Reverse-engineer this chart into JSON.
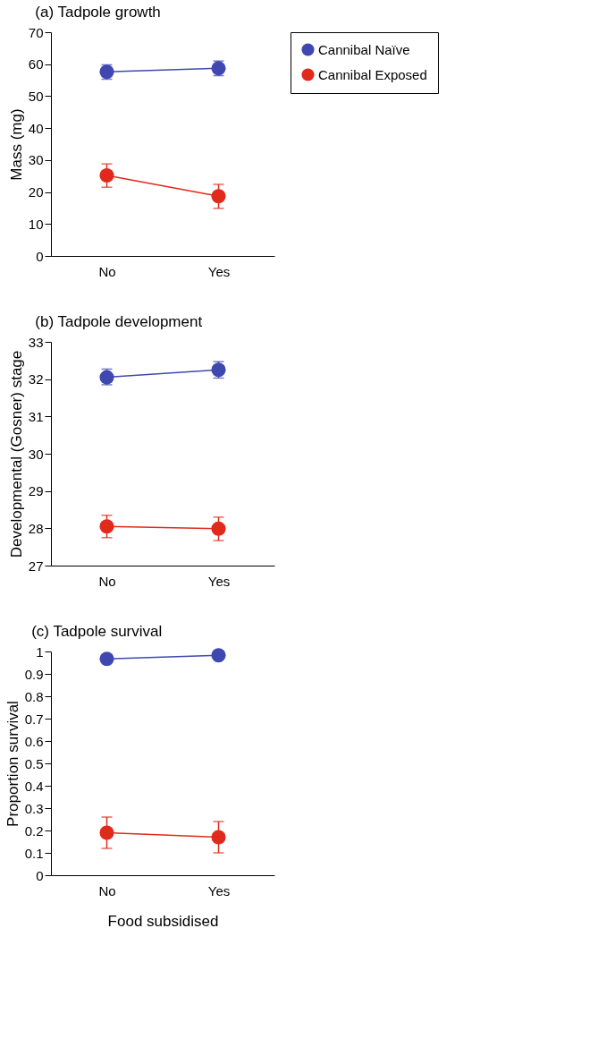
{
  "chart_data": [
    {
      "type": "line",
      "title": "(a) Tadpole growth",
      "ylabel": "Mass (mg)",
      "categories": [
        "No",
        "Yes"
      ],
      "ylim": [
        0,
        70
      ],
      "yticks": [
        0,
        10,
        20,
        30,
        40,
        50,
        60,
        70
      ],
      "legend": "right",
      "marker": "circle",
      "series": [
        {
          "name": "Cannibal Naïve",
          "color": "#3f48b0",
          "values": [
            57.6,
            58.7
          ],
          "errors": [
            [
              55.3,
              59.8
            ],
            [
              56.4,
              61.0
            ]
          ]
        },
        {
          "name": "Cannibal Exposed",
          "color": "#e02a1c",
          "values": [
            25.2,
            18.7
          ],
          "errors": [
            [
              21.5,
              28.8
            ],
            [
              14.9,
              22.4
            ]
          ]
        }
      ]
    },
    {
      "type": "line",
      "title": "(b) Tadpole development",
      "ylabel": "Developmental (Gosner) stage",
      "categories": [
        "No",
        "Yes"
      ],
      "ylim": [
        27,
        33
      ],
      "yticks": [
        27,
        28,
        29,
        30,
        31,
        32,
        33
      ],
      "marker": "circle",
      "series": [
        {
          "color": "#3f48b0",
          "values": [
            32.05,
            32.25
          ],
          "errors": [
            [
              31.85,
              32.27
            ],
            [
              32.03,
              32.47
            ]
          ]
        },
        {
          "color": "#e02a1c",
          "values": [
            28.05,
            27.99
          ],
          "errors": [
            [
              27.75,
              28.35
            ],
            [
              27.67,
              28.3
            ]
          ]
        }
      ]
    },
    {
      "type": "line",
      "title": "(c) Tadpole survival",
      "xlabel": "Food subsidised",
      "ylabel": "Proportion survival",
      "categories": [
        "No",
        "Yes"
      ],
      "ylim": [
        0,
        1
      ],
      "yticks": [
        0,
        0.1,
        0.2,
        0.3,
        0.4,
        0.5,
        0.6,
        0.7,
        0.8,
        0.9,
        1
      ],
      "marker": "circle",
      "series": [
        {
          "color": "#3f48b0",
          "values": [
            0.967,
            0.983
          ]
        },
        {
          "color": "#e02a1c",
          "values": [
            0.19,
            0.17
          ],
          "errors": [
            [
              0.12,
              0.26
            ],
            [
              0.1,
              0.24
            ]
          ]
        }
      ]
    }
  ]
}
